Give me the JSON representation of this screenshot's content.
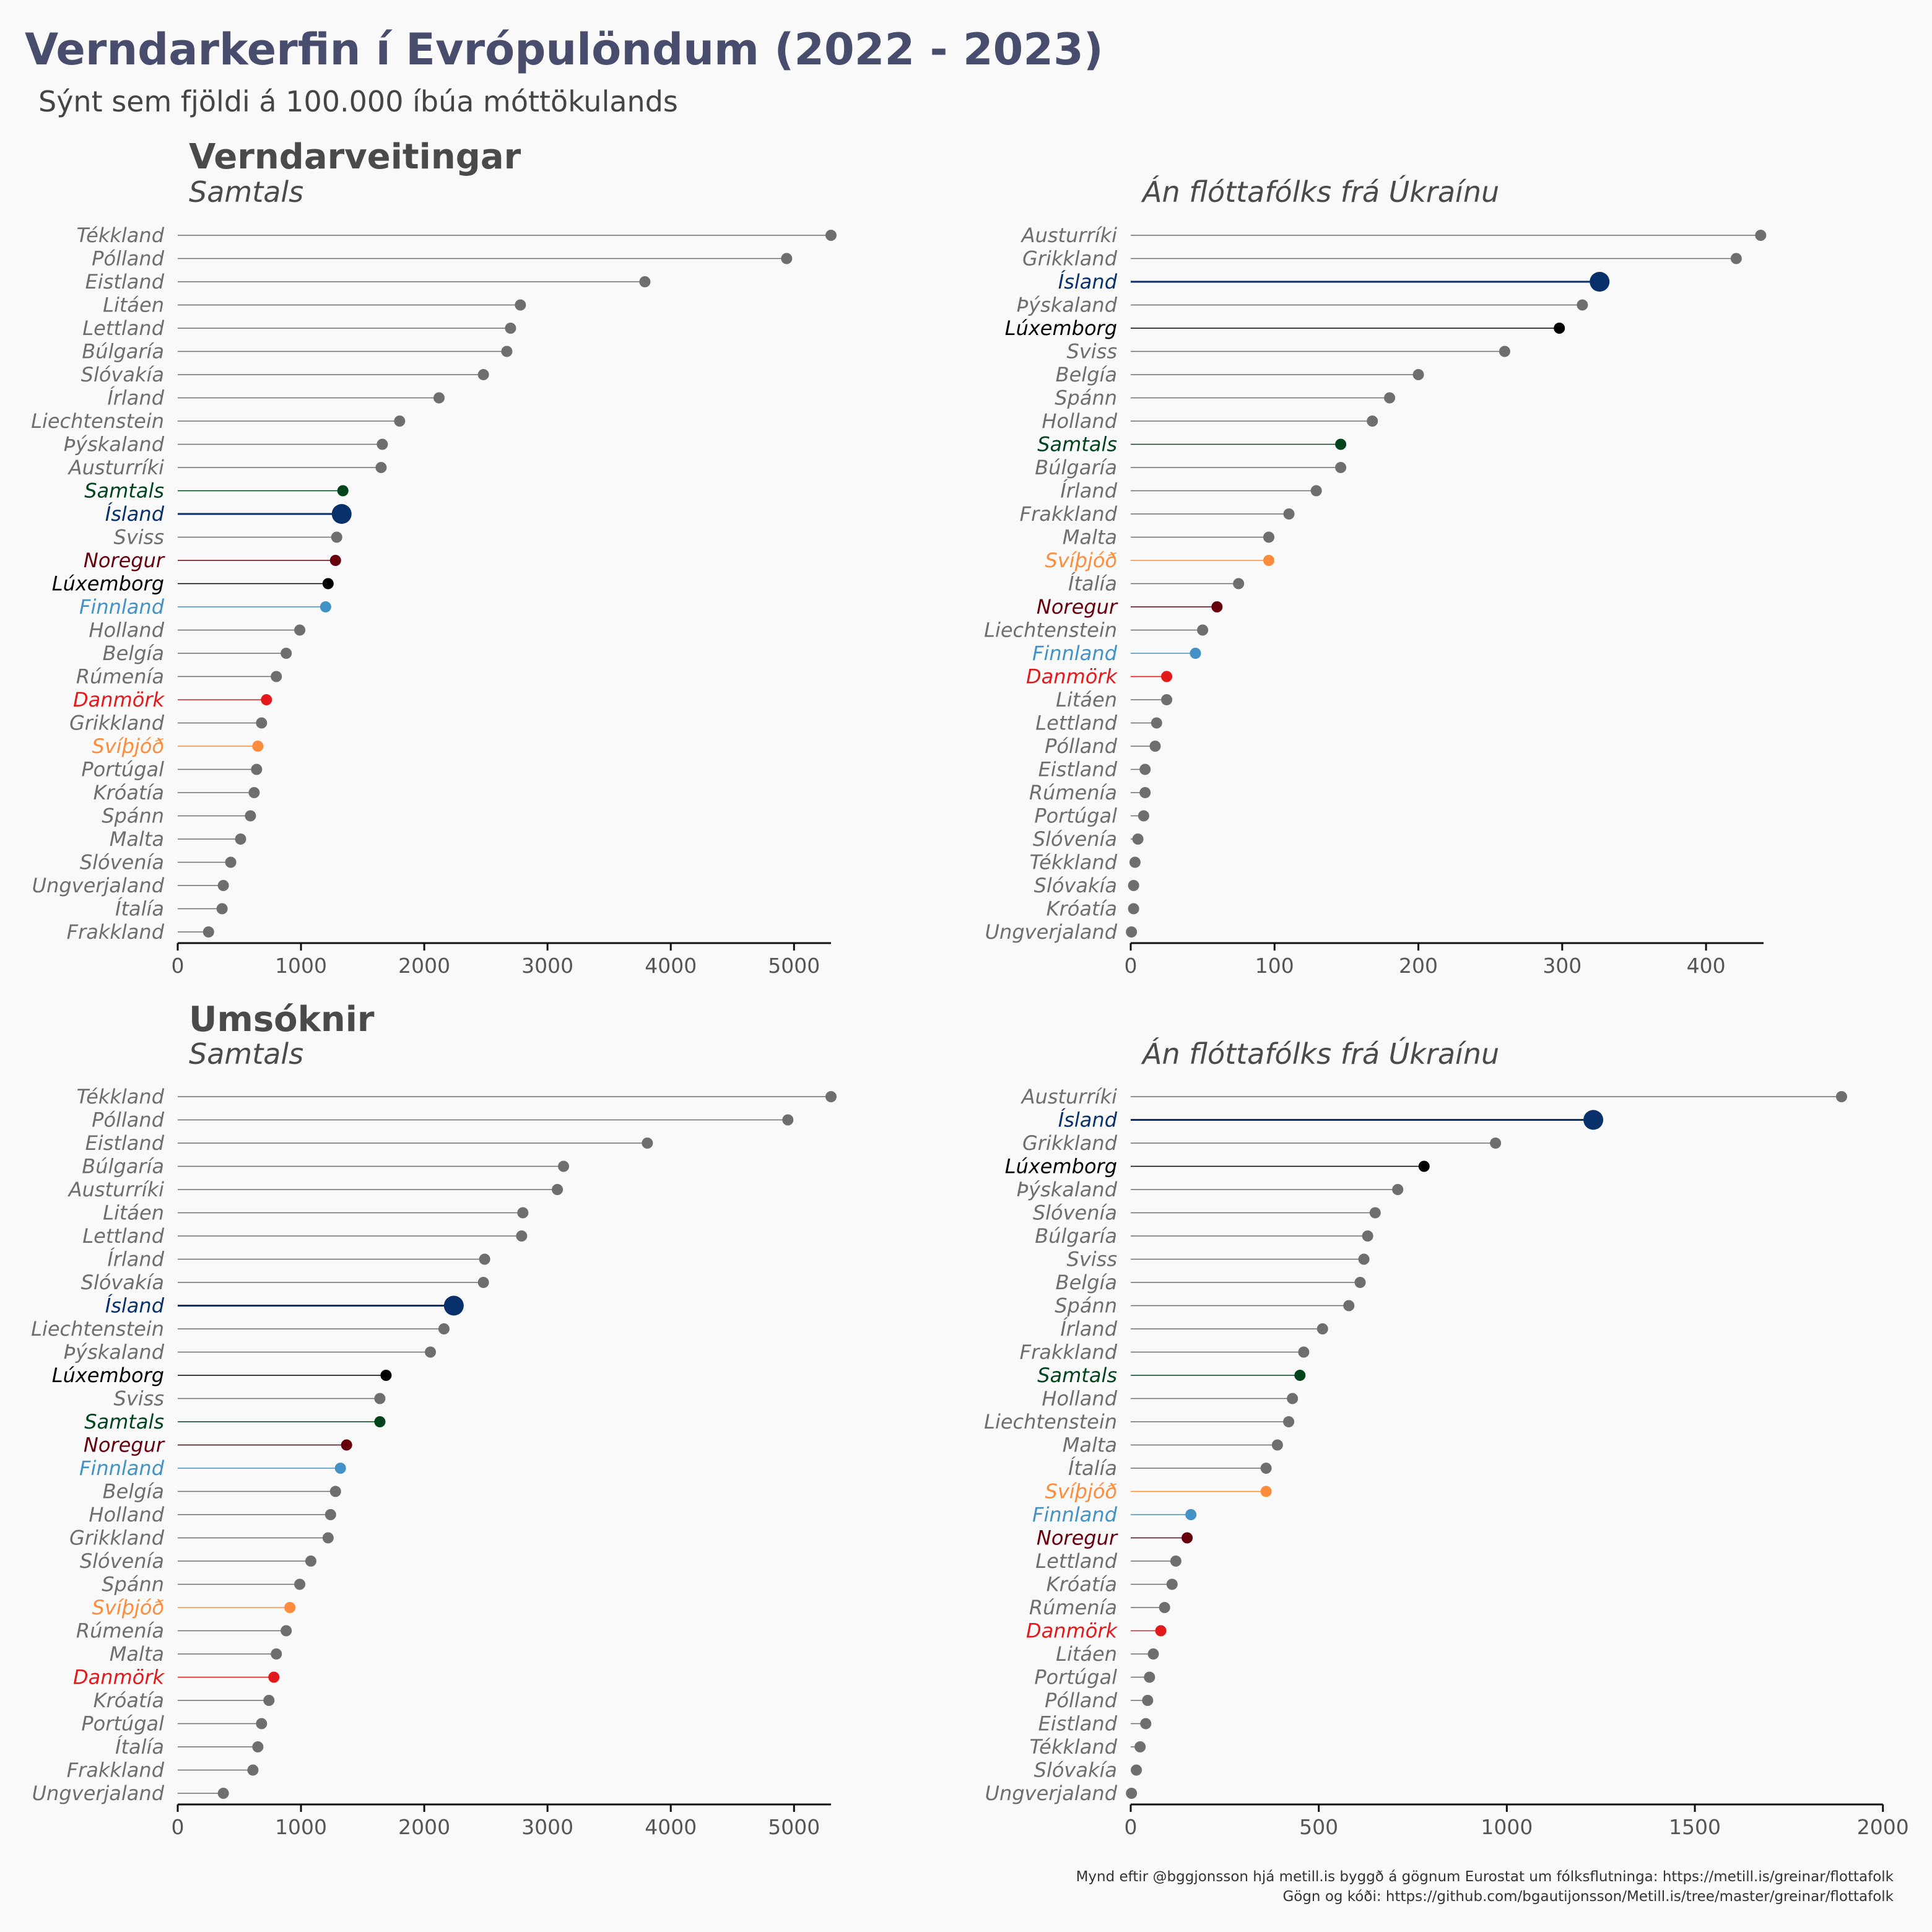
{
  "title": "Verndarkerfin í Evrópulöndum (2022 - 2023)",
  "subtitle": "Sýnt sem fjöldi á 100.000 íbúa móttökulands",
  "caption": [
    "Mynd eftir @bggjonsson hjá metill.is byggð á gögnum Eurostat um fólksflutninga: https://metill.is/greinar/flottafolk",
    "Gögn og kóði: https://github.com/bgautijonsson/Metill.is/tree/master/greinar/flottafolk"
  ],
  "colors": {
    "default": "#6e6e6e",
    "Ísland": "#08306b",
    "Samtals": "#00441b",
    "Noregur": "#67000d",
    "Lúxemborg": "#000000",
    "Finnland": "#4292c6",
    "Danmörk": "#e31a1c",
    "Svíþjóð": "#fd8d3c"
  },
  "chart_data": [
    {
      "type": "lollipop",
      "section_title": "Verndarveitingar",
      "subtitle": "Samtals",
      "xlim": [
        0,
        5300
      ],
      "xticks": [
        0,
        1000,
        2000,
        3000,
        4000,
        5000
      ],
      "xtick_labels": [
        "0",
        "1000",
        "2000",
        "3000",
        "4000",
        "5000"
      ],
      "categories": [
        "Tékkland",
        "Pólland",
        "Eistland",
        "Litáen",
        "Lettland",
        "Búlgaría",
        "Slóvakía",
        "Írland",
        "Liechtenstein",
        "Þýskaland",
        "Austurríki",
        "Samtals",
        "Ísland",
        "Sviss",
        "Noregur",
        "Lúxemborg",
        "Finnland",
        "Holland",
        "Belgía",
        "Rúmenía",
        "Danmörk",
        "Grikkland",
        "Svíþjóð",
        "Portúgal",
        "Króatía",
        "Spánn",
        "Malta",
        "Slóvenía",
        "Ungverjaland",
        "Ítalía",
        "Frakkland"
      ],
      "values": [
        5300,
        4940,
        3790,
        2780,
        2700,
        2670,
        2480,
        2120,
        1800,
        1660,
        1650,
        1340,
        1330,
        1290,
        1280,
        1220,
        1200,
        990,
        880,
        800,
        720,
        680,
        650,
        640,
        620,
        590,
        510,
        430,
        370,
        360,
        250
      ]
    },
    {
      "type": "lollipop",
      "section_title": "",
      "subtitle": "Án flóttafólks frá Úkraínu",
      "xlim": [
        0,
        440
      ],
      "xticks": [
        0,
        100,
        200,
        300,
        400
      ],
      "xtick_labels": [
        "0",
        "100",
        "200",
        "300",
        "400"
      ],
      "categories": [
        "Austurríki",
        "Grikkland",
        "Ísland",
        "Þýskaland",
        "Lúxemborg",
        "Sviss",
        "Belgía",
        "Spánn",
        "Holland",
        "Samtals",
        "Búlgaría",
        "Írland",
        "Frakkland",
        "Malta",
        "Svíþjóð",
        "Ítalía",
        "Noregur",
        "Liechtenstein",
        "Finnland",
        "Danmörk",
        "Litáen",
        "Lettland",
        "Pólland",
        "Eistland",
        "Rúmenía",
        "Portúgal",
        "Slóvenía",
        "Tékkland",
        "Slóvakía",
        "Króatía",
        "Ungverjaland"
      ],
      "values": [
        438,
        421,
        326,
        314,
        298,
        260,
        200,
        180,
        168,
        146,
        146,
        129,
        110,
        96,
        96,
        75,
        60,
        50,
        45,
        25,
        25,
        18,
        17,
        10,
        10,
        9,
        5,
        3,
        2,
        2,
        0.5
      ]
    },
    {
      "type": "lollipop",
      "section_title": "Umsóknir",
      "subtitle": "Samtals",
      "xlim": [
        0,
        5300
      ],
      "xticks": [
        0,
        1000,
        2000,
        3000,
        4000,
        5000
      ],
      "xtick_labels": [
        "0",
        "1000",
        "2000",
        "3000",
        "4000",
        "5000"
      ],
      "categories": [
        "Tékkland",
        "Pólland",
        "Eistland",
        "Búlgaría",
        "Austurríki",
        "Litáen",
        "Lettland",
        "Írland",
        "Slóvakía",
        "Ísland",
        "Liechtenstein",
        "Þýskaland",
        "Lúxemborg",
        "Sviss",
        "Samtals",
        "Noregur",
        "Finnland",
        "Belgía",
        "Holland",
        "Grikkland",
        "Slóvenía",
        "Spánn",
        "Svíþjóð",
        "Rúmenía",
        "Malta",
        "Danmörk",
        "Króatía",
        "Portúgal",
        "Ítalía",
        "Frakkland",
        "Ungverjaland"
      ],
      "values": [
        5300,
        4950,
        3810,
        3130,
        3080,
        2800,
        2790,
        2490,
        2480,
        2240,
        2160,
        2050,
        1690,
        1640,
        1640,
        1370,
        1320,
        1280,
        1240,
        1220,
        1080,
        990,
        910,
        880,
        800,
        780,
        740,
        680,
        650,
        610,
        370
      ]
    },
    {
      "type": "lollipop",
      "section_title": "",
      "subtitle": "Án flóttafólks frá Úkraínu",
      "xlim": [
        0,
        1900
      ],
      "xticks": [
        0,
        500,
        1000,
        1500,
        2000
      ],
      "xtick_labels": [
        "0",
        "500",
        "1000",
        "1500",
        "2000"
      ],
      "categories": [
        "Austurríki",
        "Ísland",
        "Grikkland",
        "Lúxemborg",
        "Þýskaland",
        "Slóvenía",
        "Búlgaría",
        "Sviss",
        "Belgía",
        "Spánn",
        "Írland",
        "Frakkland",
        "Samtals",
        "Holland",
        "Liechtenstein",
        "Malta",
        "Ítalía",
        "Svíþjóð",
        "Finnland",
        "Noregur",
        "Lettland",
        "Króatía",
        "Rúmenía",
        "Danmörk",
        "Litáen",
        "Portúgal",
        "Pólland",
        "Eistland",
        "Tékkland",
        "Slóvakía",
        "Ungverjaland"
      ],
      "values": [
        1890,
        1230,
        970,
        780,
        710,
        650,
        630,
        620,
        610,
        580,
        510,
        460,
        450,
        430,
        420,
        390,
        360,
        360,
        160,
        150,
        120,
        110,
        90,
        80,
        60,
        50,
        45,
        40,
        25,
        15,
        2
      ]
    }
  ]
}
